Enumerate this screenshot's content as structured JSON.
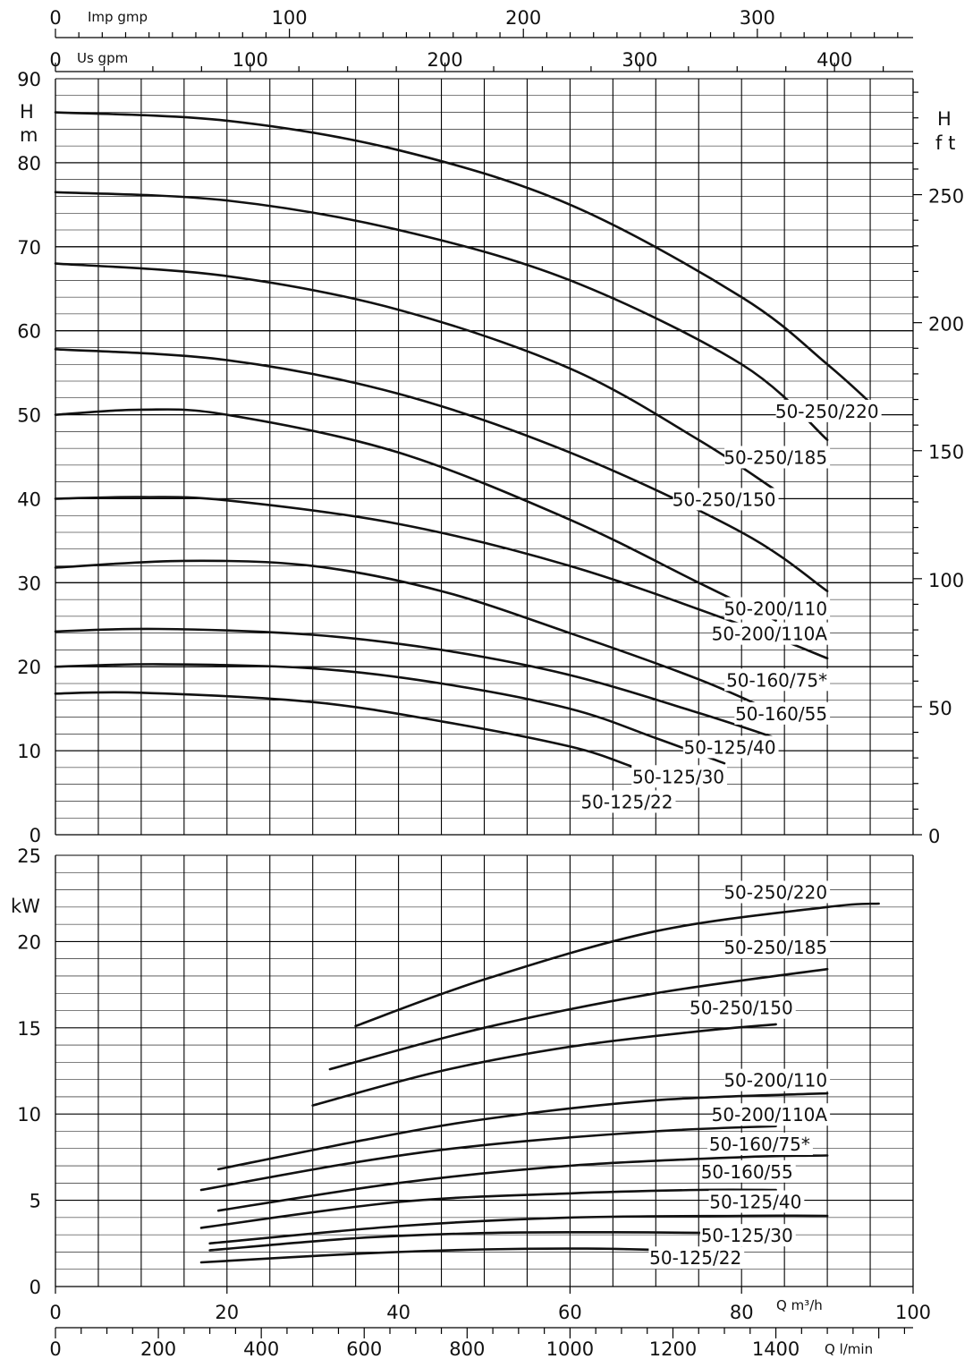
{
  "chart_data": [
    {
      "type": "line",
      "panel": "head",
      "ylabel": "H m",
      "ylabel_parts": [
        "H",
        "m"
      ],
      "ylabel_right_parts": [
        "H",
        "f t"
      ],
      "ylim": [
        0,
        90
      ],
      "xlim": [
        0,
        100
      ],
      "y_ticks": [
        0,
        10,
        20,
        30,
        40,
        50,
        60,
        70,
        80,
        90
      ],
      "y_right_ticks_ft": [
        0,
        50,
        100,
        150,
        200,
        250
      ],
      "grid": true,
      "series": [
        {
          "name": "50-250/220",
          "x": [
            0,
            20,
            40,
            60,
            80,
            90,
            96
          ],
          "y": [
            86,
            85,
            81.5,
            75,
            64,
            56,
            50.5
          ]
        },
        {
          "name": "50-250/185",
          "x": [
            0,
            20,
            40,
            60,
            80,
            90
          ],
          "y": [
            76.5,
            75.5,
            72,
            66,
            56,
            47
          ]
        },
        {
          "name": "50-250/150",
          "x": [
            0,
            20,
            40,
            60,
            75,
            84
          ],
          "y": [
            68,
            66.5,
            62.5,
            55.5,
            47,
            41
          ]
        },
        {
          "name": "50-200/110",
          "x": [
            0,
            20,
            40,
            60,
            80,
            90
          ],
          "y": [
            57.8,
            56.5,
            52.5,
            45.5,
            36,
            29
          ]
        },
        {
          "name": "50-200/110A",
          "x": [
            0,
            10,
            20,
            40,
            60,
            75,
            84
          ],
          "y": [
            50,
            50.6,
            50,
            45.5,
            37.5,
            30,
            25.5
          ]
        },
        {
          "name": "50-160/75*",
          "x": [
            0,
            10,
            20,
            40,
            60,
            80,
            90
          ],
          "y": [
            40,
            40.2,
            39.8,
            37,
            32,
            25,
            21
          ]
        },
        {
          "name": "50-160/55",
          "x": [
            0,
            15,
            30,
            45,
            60,
            75,
            84
          ],
          "y": [
            31.8,
            32.6,
            32,
            29,
            24,
            18.5,
            14.5
          ]
        },
        {
          "name": "50-125/40",
          "x": [
            0,
            12,
            30,
            45,
            60,
            75,
            84
          ],
          "y": [
            24.2,
            24.5,
            23.8,
            22,
            19,
            14.5,
            11.5
          ]
        },
        {
          "name": "50-125/30",
          "x": [
            0,
            12,
            30,
            45,
            60,
            70,
            78
          ],
          "y": [
            20,
            20.3,
            19.8,
            18,
            15,
            11.5,
            8.5
          ]
        },
        {
          "name": "50-125/22",
          "x": [
            0,
            10,
            30,
            45,
            60,
            67,
            72
          ],
          "y": [
            16.8,
            16.9,
            15.8,
            13.5,
            10.5,
            8.2,
            6.2
          ]
        }
      ]
    },
    {
      "type": "line",
      "panel": "power",
      "ylabel": "kW",
      "ylim": [
        0,
        25
      ],
      "xlim": [
        0,
        100
      ],
      "y_ticks": [
        0,
        5,
        10,
        15,
        20,
        25
      ],
      "grid": true,
      "series": [
        {
          "name": "50-250/220",
          "x": [
            35,
            50,
            70,
            90,
            96
          ],
          "y": [
            15.1,
            17.8,
            20.6,
            22,
            22.2
          ]
        },
        {
          "name": "50-250/185",
          "x": [
            32,
            50,
            70,
            90
          ],
          "y": [
            12.6,
            15,
            17,
            18.4
          ]
        },
        {
          "name": "50-250/150",
          "x": [
            30,
            45,
            60,
            75,
            84
          ],
          "y": [
            10.5,
            12.5,
            13.9,
            14.8,
            15.2
          ]
        },
        {
          "name": "50-200/110",
          "x": [
            19,
            35,
            50,
            70,
            90
          ],
          "y": [
            6.8,
            8.4,
            9.7,
            10.8,
            11.2
          ]
        },
        {
          "name": "50-200/110A",
          "x": [
            17,
            35,
            50,
            70,
            84
          ],
          "y": [
            5.6,
            7.2,
            8.2,
            9,
            9.3
          ]
        },
        {
          "name": "50-160/75*",
          "x": [
            19,
            40,
            60,
            80,
            90
          ],
          "y": [
            4.4,
            6,
            7,
            7.5,
            7.6
          ]
        },
        {
          "name": "50-160/55",
          "x": [
            17,
            40,
            60,
            75,
            84
          ],
          "y": [
            3.4,
            4.9,
            5.4,
            5.6,
            5.6
          ]
        },
        {
          "name": "50-125/40",
          "x": [
            18,
            40,
            60,
            80,
            90
          ],
          "y": [
            2.5,
            3.5,
            4,
            4.1,
            4.1
          ]
        },
        {
          "name": "50-125/30",
          "x": [
            18,
            35,
            50,
            65,
            78
          ],
          "y": [
            2.1,
            2.8,
            3.1,
            3.15,
            3.1
          ]
        },
        {
          "name": "50-125/22",
          "x": [
            17,
            35,
            50,
            62,
            72
          ],
          "y": [
            1.4,
            1.9,
            2.15,
            2.2,
            2.1
          ]
        }
      ]
    }
  ],
  "axes": {
    "x_main_ticks": [
      0,
      20,
      40,
      60,
      80,
      100
    ],
    "x_main_label": "Q m³/h",
    "x_lmin_ticks": [
      0,
      200,
      400,
      600,
      800,
      1000,
      1200,
      1400
    ],
    "x_lmin_label": "Q l/min",
    "x_usgpm_ticks": [
      0,
      100,
      200,
      300,
      400
    ],
    "x_usgpm_label": "Us gpm",
    "x_impgpm_ticks": [
      0,
      100,
      200,
      300
    ],
    "x_impgpm_label": "Imp gmp"
  },
  "head_labels": [
    {
      "text": "50-250/220",
      "at_x": 96,
      "at_y": 50.5
    },
    {
      "text": "50-250/185",
      "at_x": 90,
      "at_y": 45
    },
    {
      "text": "50-250/150",
      "at_x": 84,
      "at_y": 40
    },
    {
      "text": "50-200/110",
      "at_x": 90,
      "at_y": 27
    },
    {
      "text": "50-200/110A",
      "at_x": 90,
      "at_y": 24
    },
    {
      "text": "50-160/75*",
      "at_x": 90,
      "at_y": 18.5
    },
    {
      "text": "50-160/55",
      "at_x": 90,
      "at_y": 14.5
    },
    {
      "text": "50-125/40",
      "at_x": 84,
      "at_y": 10.5
    },
    {
      "text": "50-125/30",
      "at_x": 78,
      "at_y": 7
    },
    {
      "text": "50-125/22",
      "at_x": 72,
      "at_y": 4
    }
  ],
  "power_labels": [
    {
      "text": "50-250/220",
      "at_x": 90,
      "at_y": 22.9
    },
    {
      "text": "50-250/185",
      "at_x": 90,
      "at_y": 19.7
    },
    {
      "text": "50-250/150",
      "at_x": 86,
      "at_y": 16.2
    },
    {
      "text": "50-200/110",
      "at_x": 90,
      "at_y": 12
    },
    {
      "text": "50-200/110A",
      "at_x": 90,
      "at_y": 10
    },
    {
      "text": "50-160/75*",
      "at_x": 88,
      "at_y": 8.3
    },
    {
      "text": "50-160/55",
      "at_x": 86,
      "at_y": 6.7
    },
    {
      "text": "50-125/40",
      "at_x": 87,
      "at_y": 4.95
    },
    {
      "text": "50-125/30",
      "at_x": 86,
      "at_y": 3
    },
    {
      "text": "50-125/22",
      "at_x": 80,
      "at_y": 1.7
    }
  ]
}
